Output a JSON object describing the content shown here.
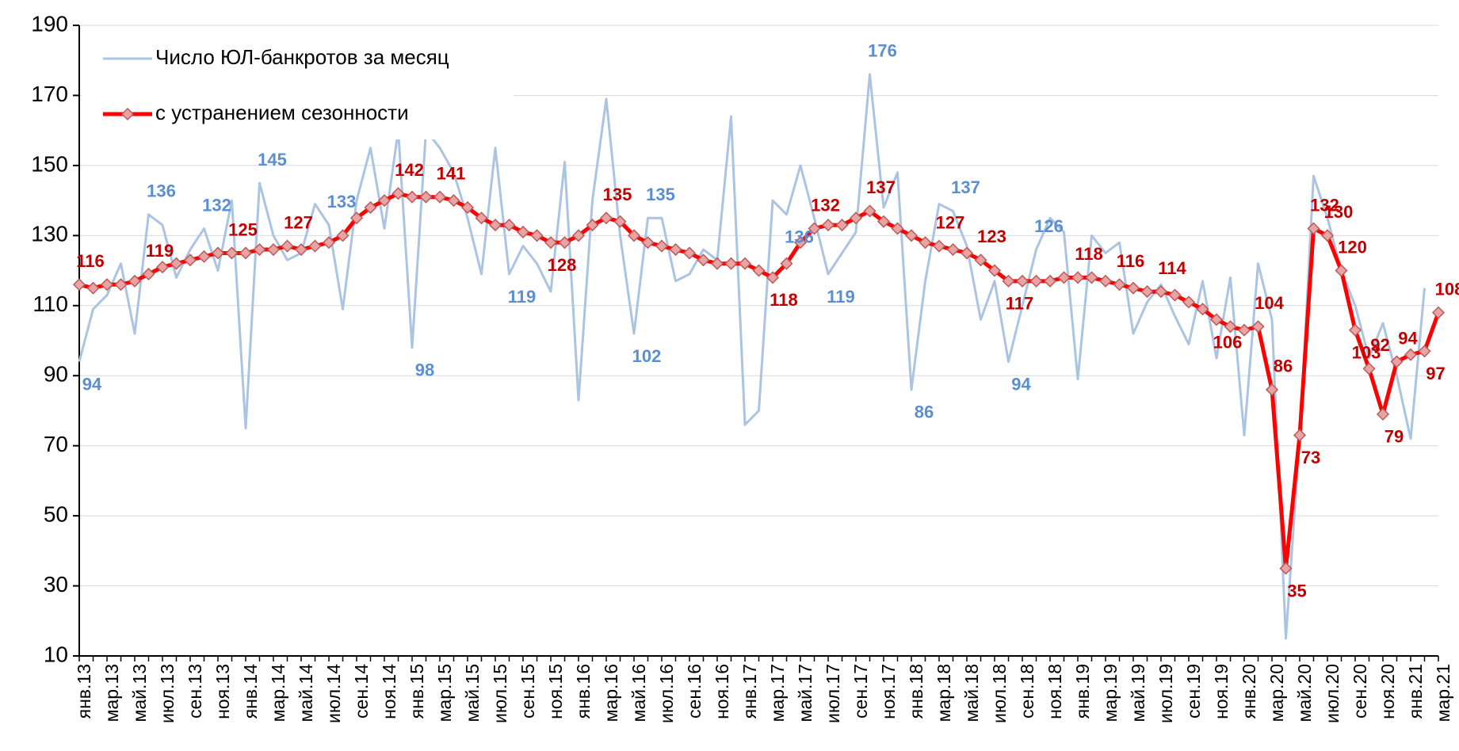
{
  "chart_data": {
    "type": "line",
    "categories": [
      "янв.13",
      null,
      "мар.13",
      null,
      "май.13",
      null,
      "июл.13",
      null,
      "сен.13",
      null,
      "ноя.13",
      null,
      "янв.14",
      null,
      "мар.14",
      null,
      "май.14",
      null,
      "июл.14",
      null,
      "сен.14",
      null,
      "ноя.14",
      null,
      "янв.15",
      null,
      "мар.15",
      null,
      "май.15",
      null,
      "июл.15",
      null,
      "сен.15",
      null,
      "ноя.15",
      null,
      "янв.16",
      null,
      "мар.16",
      null,
      "май.16",
      null,
      "июл.16",
      null,
      "сен.16",
      null,
      "ноя.16",
      null,
      "янв.17",
      null,
      "мар.17",
      null,
      "май.17",
      null,
      "июл.17",
      null,
      "сен.17",
      null,
      "ноя.17",
      null,
      "янв.18",
      null,
      "мар.18",
      null,
      "май.18",
      null,
      "июл.18",
      null,
      "сен.18",
      null,
      "ноя.18",
      null,
      "янв.19",
      null,
      "мар.19",
      null,
      "май.19",
      null,
      "июл.19",
      null,
      "сен.19",
      null,
      "ноя.19",
      null,
      "янв.20",
      null,
      "мар.20",
      null,
      "май.20",
      null,
      "июл.20",
      null,
      "сен.20",
      null,
      "ноя.20",
      null,
      "янв.21",
      null,
      "мар.21"
    ],
    "series": [
      {
        "name": "Число ЮЛ-банкротов за месяц",
        "color": "#aac4e2",
        "label_color": "#5b8fd0",
        "values": [
          94,
          109,
          113,
          122,
          102,
          136,
          133,
          118,
          126,
          132,
          120,
          140,
          75,
          145,
          130,
          123,
          125,
          139,
          133,
          109,
          140,
          155,
          132,
          160,
          98,
          160,
          155,
          148,
          135,
          119,
          155,
          119,
          127,
          122,
          114,
          151,
          83,
          140,
          169,
          130,
          102,
          135,
          135,
          117,
          119,
          126,
          123,
          164,
          76,
          80,
          140,
          136,
          150,
          135,
          119,
          125,
          131,
          176,
          138,
          148,
          86,
          117,
          139,
          137,
          127,
          106,
          117,
          94,
          110,
          126,
          135,
          131,
          89,
          130,
          125,
          128,
          102,
          111,
          116,
          107,
          99,
          117,
          95,
          118,
          73,
          122,
          106,
          15,
          72,
          147,
          135,
          120,
          110,
          95,
          105,
          90,
          72,
          115,
          null
        ],
        "value_labels": [
          "94",
          null,
          null,
          null,
          null,
          "136",
          null,
          null,
          null,
          "132",
          null,
          null,
          null,
          "145",
          null,
          null,
          null,
          null,
          "133",
          null,
          null,
          null,
          null,
          null,
          "98",
          null,
          null,
          null,
          null,
          null,
          null,
          "119",
          null,
          null,
          null,
          null,
          null,
          null,
          null,
          null,
          "102",
          "135",
          null,
          null,
          null,
          null,
          null,
          null,
          null,
          null,
          null,
          "136",
          null,
          null,
          "119",
          null,
          null,
          "176",
          null,
          null,
          "86",
          null,
          null,
          "137",
          null,
          null,
          null,
          "94",
          null,
          "126",
          null,
          null,
          null,
          null,
          null,
          null,
          null,
          null,
          null,
          null,
          null,
          null,
          null,
          null,
          null,
          null,
          null,
          null,
          null,
          null,
          null,
          null,
          null,
          null,
          null,
          null,
          null,
          null,
          null
        ]
      },
      {
        "name": "с устранением сезонности",
        "color": "#ff0000",
        "label_color": "#c00000",
        "values": [
          116,
          115,
          116,
          116,
          117,
          119,
          121,
          122,
          123,
          124,
          125,
          125,
          125,
          126,
          126,
          127,
          126,
          127,
          128,
          130,
          135,
          138,
          140,
          142,
          141,
          141,
          141,
          140,
          138,
          135,
          133,
          133,
          131,
          130,
          128,
          128,
          130,
          133,
          135,
          134,
          130,
          128,
          127,
          126,
          125,
          123,
          122,
          122,
          122,
          120,
          118,
          122,
          128,
          132,
          133,
          133,
          135,
          137,
          134,
          132,
          130,
          128,
          127,
          126,
          125,
          123,
          120,
          117,
          117,
          117,
          117,
          118,
          118,
          118,
          117,
          116,
          115,
          114,
          114,
          113,
          111,
          109,
          106,
          104,
          103,
          104,
          86,
          35,
          73,
          132,
          130,
          120,
          103,
          92,
          79,
          94,
          96,
          97,
          108
        ],
        "value_labels": [
          "116",
          null,
          null,
          null,
          null,
          "119",
          null,
          null,
          null,
          null,
          null,
          "125",
          null,
          null,
          null,
          "127",
          null,
          null,
          null,
          null,
          null,
          null,
          null,
          "142",
          null,
          null,
          "141",
          null,
          null,
          null,
          null,
          null,
          null,
          null,
          "128",
          null,
          null,
          null,
          "135",
          null,
          null,
          null,
          null,
          null,
          null,
          null,
          null,
          null,
          null,
          null,
          "118",
          null,
          null,
          "132",
          null,
          null,
          null,
          "137",
          null,
          null,
          null,
          null,
          "127",
          null,
          null,
          "123",
          null,
          "117",
          null,
          null,
          null,
          null,
          "118",
          null,
          null,
          "116",
          null,
          null,
          "114",
          null,
          null,
          null,
          "106",
          null,
          null,
          "104",
          "86",
          "35",
          "73",
          "132",
          "130",
          "120",
          "103",
          "92",
          "79",
          "94",
          null,
          "97",
          "108"
        ]
      }
    ],
    "ylim": [
      10,
      190
    ],
    "yticks": [
      10,
      30,
      50,
      70,
      90,
      110,
      130,
      150,
      170,
      190
    ],
    "grid": true,
    "legend": "upper left"
  }
}
